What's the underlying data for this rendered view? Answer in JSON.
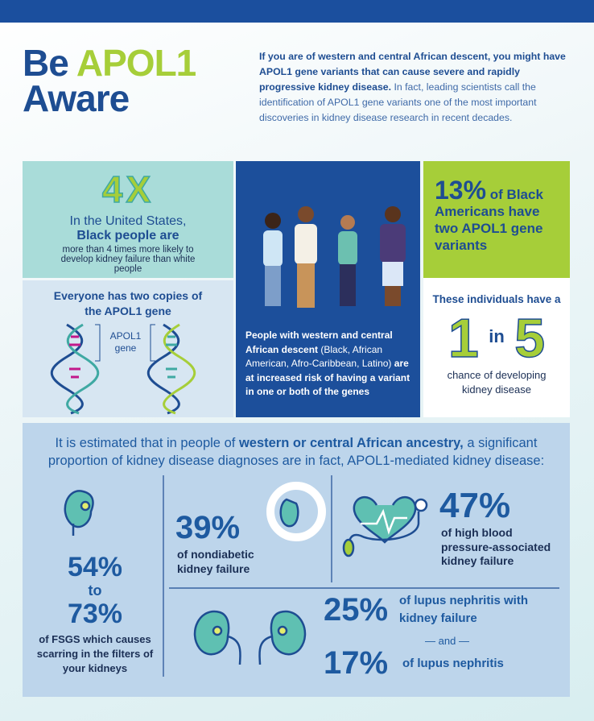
{
  "header": {
    "title": [
      "Be",
      "APOL1",
      "Aware"
    ],
    "intro_bold": "If you are of western and central African descent, you might have APOL1 gene variants that can cause severe and rapidly progressive kidney disease.",
    "intro_text": "In fact, leading scientists call the identification of APOL1 gene variants one of the most important discoveries in kidney disease research in recent decades."
  },
  "panels": {
    "risk": {
      "big": "4X",
      "line1": "In the United States,",
      "line2": "Black people are",
      "line3": "more than 4 times more likely to develop kidney failure than white people"
    },
    "copies": {
      "title": "Everyone has two copies of the APOL1 gene",
      "gene_label": "APOL1 gene"
    },
    "descent": {
      "bold1": "People with western and central African descent",
      "text": "(Black, African American, Afro-Caribbean, Latino)",
      "bold2": "are at increased risk of having a variant  in one or both of the genes"
    },
    "prevalence": {
      "stat": "13%",
      "text": "of Black Americans have two APOL1 gene variants"
    },
    "odds": {
      "intro": "These individuals have a",
      "numerator": "1",
      "word": "in",
      "denominator": "5",
      "outro": "chance of developing kidney disease"
    }
  },
  "estimate": {
    "intro_text": "It is estimated that in people of",
    "intro_bold": "western or central African ancestry,",
    "intro_end": "a significant proportion of kidney disease diagnoses are in fact, APOL1-mediated kidney disease:",
    "fsgs": {
      "low": "54%",
      "to": "to",
      "high": "73%",
      "label": "of FSGS which causes scarring in the filters of your kidneys"
    },
    "nondiabetic": {
      "value": "39%",
      "label": "of nondiabetic kidney failure"
    },
    "hypertension": {
      "value": "47%",
      "label": "of high blood pressure-associated kidney failure"
    },
    "lupus_failure": {
      "value": "25%",
      "label": "of lupus nephritis with kidney failure"
    },
    "and": "— and —",
    "lupus": {
      "value": "17%",
      "label": "of lupus nephritis"
    }
  }
}
